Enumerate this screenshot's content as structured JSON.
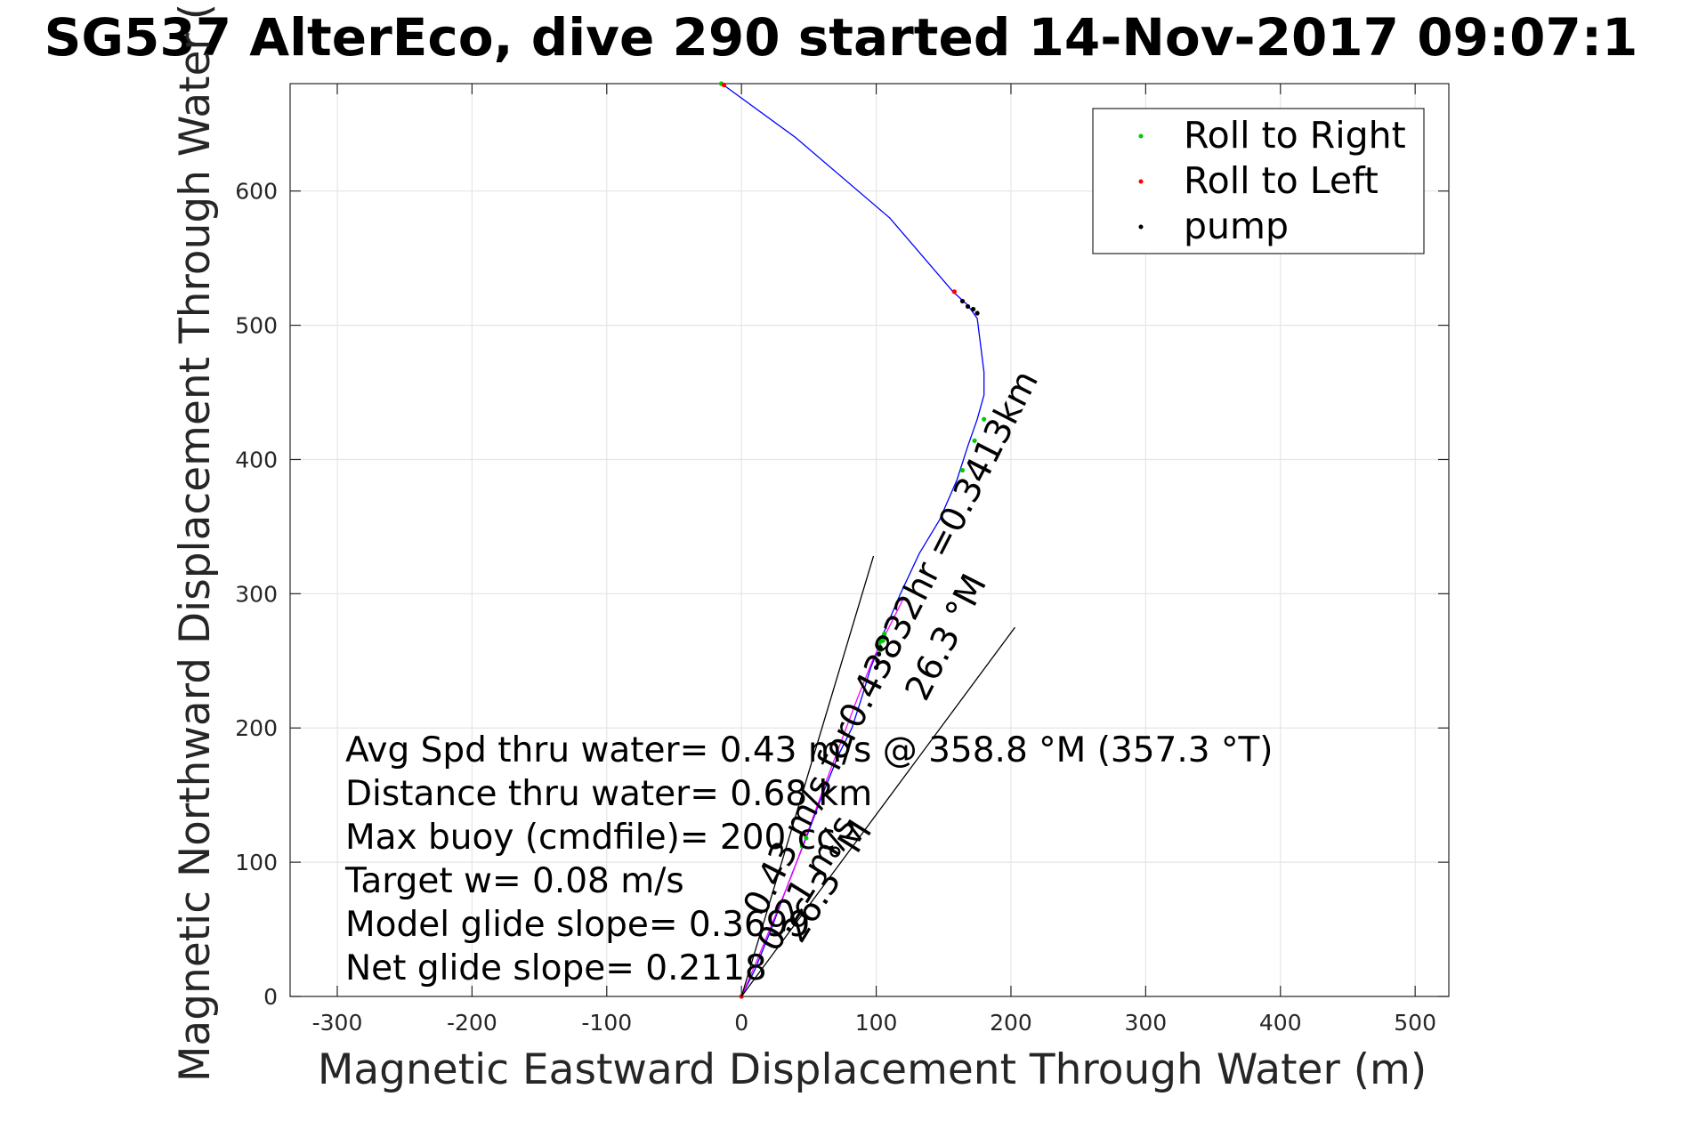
{
  "chart_data": {
    "type": "line",
    "title": "SG537 AlterEco, dive 290 started 14-Nov-2017 09:07:1",
    "xlabel": "Magnetic Eastward Displacement Through Water (m)",
    "ylabel": "Magnetic Northward Displacement Through Water (",
    "xlim": [
      -335,
      525
    ],
    "ylim": [
      0,
      680
    ],
    "x_ticks": [
      -300,
      -200,
      -100,
      0,
      100,
      200,
      300,
      400,
      500
    ],
    "y_ticks": [
      0,
      100,
      200,
      300,
      400,
      500,
      600
    ],
    "grid": true,
    "legend_position": "top-right",
    "series": [
      {
        "name": "",
        "color": "#0000ff",
        "x": [
          0,
          10,
          22,
          35,
          48,
          60,
          72,
          82,
          90,
          96,
          100,
          102,
          104,
          106,
          118,
          132,
          147,
          160,
          168,
          175,
          180,
          180,
          175,
          168,
          157,
          110,
          40,
          -12,
          -14
        ],
        "y": [
          0,
          20,
          50,
          85,
          118,
          150,
          180,
          200,
          225,
          245,
          255,
          262,
          268,
          272,
          300,
          330,
          355,
          385,
          410,
          430,
          448,
          465,
          505,
          515,
          525,
          580,
          640,
          678,
          680
        ]
      },
      {
        "name": "",
        "color": "#ff00ff",
        "x": [
          0,
          12,
          25,
          38,
          50,
          62,
          74,
          86,
          98,
          110,
          120
        ],
        "y": [
          0,
          28,
          60,
          92,
          125,
          158,
          190,
          222,
          252,
          276,
          296
        ]
      },
      {
        "name": "Roll to Right",
        "color": "#00cc00",
        "type": "scatter",
        "x": [
          45,
          48,
          102,
          104,
          106,
          164,
          173,
          180,
          -15,
          105,
          103
        ],
        "y": [
          112,
          118,
          262,
          265,
          270,
          392,
          414,
          430,
          680,
          265,
          258
        ]
      },
      {
        "name": "Roll to Left",
        "color": "#ff0000",
        "type": "scatter",
        "x": [
          0,
          158,
          -13
        ],
        "y": [
          0,
          525,
          679
        ]
      },
      {
        "name": "pump",
        "color": "#000000",
        "type": "scatter",
        "x": [
          164,
          168,
          172,
          175,
          100,
          101,
          102,
          103
        ],
        "y": [
          518,
          514,
          512,
          509,
          245,
          250,
          255,
          260
        ]
      },
      {
        "name": "",
        "color": "#000000",
        "x": [
          0,
          98
        ],
        "y": [
          0,
          328
        ]
      },
      {
        "name": "",
        "color": "#000000",
        "x": [
          0,
          203
        ],
        "y": [
          0,
          275
        ]
      }
    ],
    "legend": [
      "Roll to Right",
      "Roll to Left",
      "pump"
    ],
    "annotations": {
      "stats": [
        "Avg Spd thru water=  0.43 m/s @ 358.8 °M (357.3 °T)",
        "Distance thru water=  0.68 km",
        "Max buoy (cmdfile)= 200 cc",
        "Target w= 0.08 m/s",
        "Model glide slope= 0.3699",
        "Net glide slope= 0.2118"
      ],
      "slanted": [
        "0.43 m/s for0.43832hr =0.3413km",
        "26.3 °M",
        "0.21 m/s",
        "26.3 °M"
      ]
    }
  }
}
